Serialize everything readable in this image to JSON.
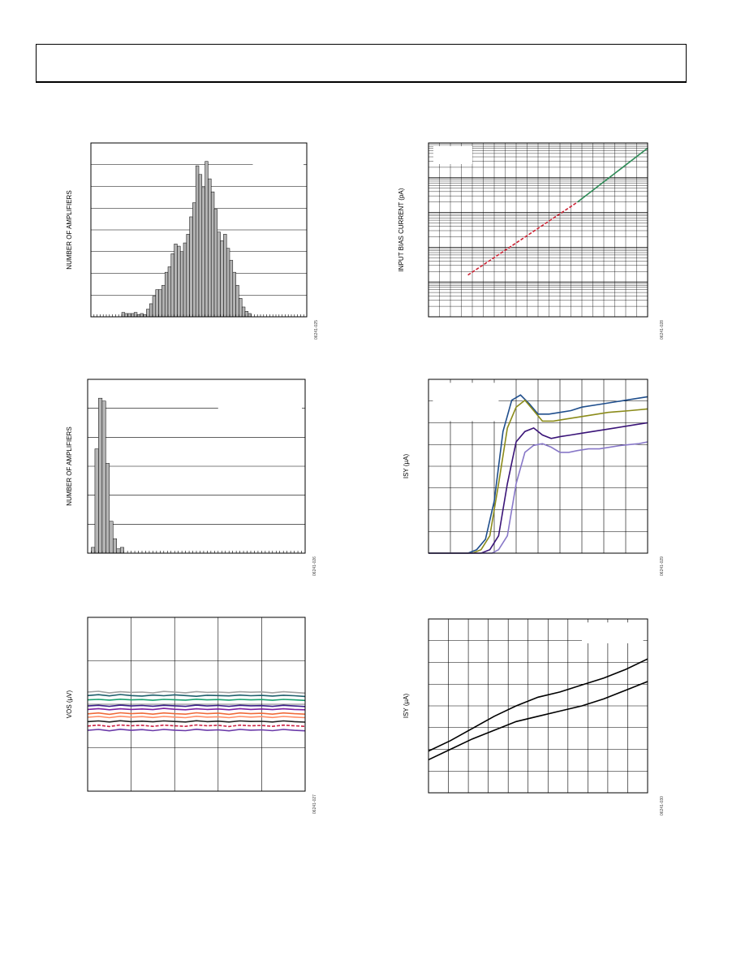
{
  "page": {
    "header_text": ""
  },
  "chart_data": [
    {
      "id": "fig1",
      "type": "bar",
      "title": "",
      "ylabel": "NUMBER OF AMPLIFIERS",
      "xlabel": "",
      "figure_id": "06241-025",
      "ylim": [
        0,
        8
      ],
      "grid": "horizontal",
      "bin_count": 70,
      "values": [
        0,
        0,
        0,
        0,
        0,
        0,
        0,
        0,
        0,
        0,
        0.2,
        0.15,
        0.15,
        0.15,
        0.2,
        0.1,
        0.15,
        0.1,
        0.35,
        0.6,
        0.95,
        1.25,
        1.25,
        1.45,
        2.05,
        2.3,
        2.9,
        3.35,
        3.25,
        3.0,
        3.4,
        3.8,
        4.6,
        5.25,
        6.95,
        6.55,
        5.95,
        7.15,
        6.35,
        5.75,
        4.95,
        3.9,
        3.5,
        3.8,
        3.15,
        2.6,
        2.05,
        1.45,
        0.85,
        0.45,
        0.25,
        0.15,
        0,
        0,
        0,
        0,
        0,
        0,
        0,
        0,
        0,
        0,
        0,
        0,
        0,
        0,
        0,
        0,
        0,
        0
      ]
    },
    {
      "id": "fig2",
      "type": "bar",
      "title": "",
      "ylabel": "NUMBER OF AMPLIFIERS",
      "xlabel": "",
      "figure_id": "06241-026",
      "ylim": [
        0,
        6
      ],
      "grid": "horizontal",
      "bin_count": 60,
      "values": [
        0,
        0.2,
        3.6,
        5.35,
        5.25,
        3.1,
        1.1,
        0.5,
        0.15,
        0.2,
        0,
        0,
        0,
        0,
        0,
        0,
        0,
        0,
        0,
        0,
        0,
        0,
        0,
        0,
        0,
        0,
        0,
        0,
        0,
        0,
        0,
        0,
        0,
        0,
        0,
        0,
        0,
        0,
        0,
        0,
        0,
        0,
        0,
        0,
        0,
        0,
        0,
        0,
        0,
        0,
        0,
        0,
        0,
        0,
        0,
        0,
        0,
        0,
        0,
        0
      ]
    },
    {
      "id": "fig3",
      "type": "line",
      "title": "",
      "ylabel": "VOS (µV)",
      "xlabel": "",
      "figure_id": "06241-027",
      "xlim": [
        0,
        100
      ],
      "ylim": [
        0,
        100
      ],
      "series": [
        {
          "color": "#a0a0a0",
          "values": [
            57,
            57.5,
            56.5,
            57.2,
            56.8,
            57,
            56.5,
            57.4,
            57,
            56.6,
            57.3,
            56.8,
            57,
            56.7,
            57.2,
            56.9,
            57.1,
            56.6,
            57.2,
            56.8,
            56.4
          ]
        },
        {
          "color": "#1e5f6b",
          "values": [
            55,
            55.5,
            54.8,
            55.6,
            55,
            54.7,
            55.3,
            54.9,
            55.4,
            55,
            54.6,
            55.2,
            55,
            54.8,
            55.3,
            54.9,
            55.1,
            54.7,
            55.2,
            54.9,
            54.5
          ]
        },
        {
          "color": "#18a070",
          "values": [
            52.5,
            52.8,
            52.4,
            52.9,
            52.5,
            52.7,
            52.3,
            52.8,
            52.6,
            52.4,
            52.9,
            52.5,
            52.7,
            52.4,
            52.8,
            52.5,
            52.7,
            52.3,
            52.8,
            52.5,
            52.2
          ]
        },
        {
          "color": "#3a1f8a",
          "values": [
            49,
            49.4,
            48.8,
            49.5,
            49,
            49.3,
            48.9,
            49.4,
            49.1,
            48.8,
            49.5,
            49,
            49.3,
            48.8,
            49.4,
            49.1,
            49.2,
            48.8,
            49.4,
            49,
            48.7
          ]
        },
        {
          "color": "#7b1fa2",
          "values": [
            47,
            47.5,
            46.8,
            47.4,
            47,
            47.3,
            46.9,
            47.6,
            47.1,
            46.8,
            47.4,
            47,
            47.3,
            46.8,
            47.5,
            47,
            47.3,
            46.9,
            47.4,
            47,
            46.8
          ]
        },
        {
          "color": "#f06a3a",
          "values": [
            44.5,
            45,
            44.2,
            45.1,
            44.6,
            44.9,
            44.3,
            45,
            44.6,
            44.3,
            45.1,
            44.6,
            44.9,
            44.2,
            45,
            44.6,
            44.8,
            44.3,
            45,
            44.6,
            44.3
          ]
        },
        {
          "color": "#ff8c66",
          "values": [
            42.5,
            43,
            42.3,
            43.1,
            42.6,
            42.9,
            42.4,
            43,
            42.6,
            42.3,
            43.1,
            42.6,
            42.8,
            42.3,
            43,
            42.6,
            42.9,
            42.4,
            43,
            42.6,
            42.3
          ]
        },
        {
          "color": "#222222",
          "values": [
            40,
            40.4,
            39.8,
            40.5,
            40,
            40.3,
            39.9,
            40.4,
            40.1,
            39.8,
            40.5,
            40,
            40.3,
            39.8,
            40.4,
            40.1,
            40.2,
            39.8,
            40.4,
            40,
            39.7
          ]
        },
        {
          "color": "#cc2244",
          "dashed": true,
          "values": [
            37.5,
            38,
            37.2,
            38.1,
            37.6,
            37.9,
            37.3,
            38,
            37.6,
            37.3,
            38.1,
            37.6,
            37.9,
            37.2,
            38,
            37.6,
            37.8,
            37.3,
            38,
            37.6,
            37.3
          ]
        },
        {
          "color": "#6a3aa8",
          "values": [
            35,
            35.5,
            34.7,
            35.6,
            35,
            35.4,
            34.8,
            35.5,
            35.1,
            34.8,
            35.6,
            35,
            35.3,
            34.7,
            35.5,
            35.1,
            35.3,
            34.8,
            35.5,
            35,
            34.7
          ]
        }
      ]
    },
    {
      "id": "fig4",
      "type": "line",
      "title": "",
      "ylabel": "INPUT BIAS CURRENT (pA)",
      "xlabel": "",
      "figure_id": "06241-028",
      "yscale": "log",
      "xlim": [
        0,
        100
      ],
      "ylim_decades": 5,
      "grid": "log",
      "series": [
        {
          "color": "#cc2233",
          "dashed": true,
          "x": [
            18,
            68
          ],
          "log_values": [
            1.2,
            3.3
          ]
        },
        {
          "color": "#2e8b57",
          "x": [
            68,
            100
          ],
          "log_values": [
            3.3,
            4.85
          ]
        }
      ]
    },
    {
      "id": "fig5",
      "type": "line",
      "title": "",
      "ylabel": "ISY (µA)",
      "xlabel": "",
      "figure_id": "06241-029",
      "xlim": [
        0,
        100
      ],
      "ylim": [
        0,
        100
      ],
      "grid": "both",
      "series": [
        {
          "color": "#1f4e8c",
          "x": [
            0,
            18,
            22,
            26,
            30,
            34,
            38,
            42,
            46,
            50,
            55,
            60,
            65,
            70,
            80,
            90,
            100
          ],
          "values": [
            0,
            0,
            2,
            8,
            30,
            70,
            88,
            91,
            86,
            80,
            80,
            81,
            82,
            84,
            86,
            88,
            90
          ]
        },
        {
          "color": "#8b8b1a",
          "x": [
            0,
            20,
            24,
            28,
            32,
            36,
            40,
            44,
            48,
            52,
            57,
            62,
            67,
            72,
            82,
            92,
            100
          ],
          "values": [
            0,
            0,
            2,
            10,
            40,
            72,
            84,
            88,
            82,
            76,
            76,
            77,
            78,
            79,
            81,
            82,
            83
          ]
        },
        {
          "color": "#3a1478",
          "x": [
            0,
            24,
            28,
            32,
            36,
            40,
            44,
            48,
            52,
            56,
            60,
            65,
            70,
            75,
            85,
            95,
            100
          ],
          "values": [
            0,
            0,
            2,
            10,
            40,
            64,
            70,
            72,
            68,
            66,
            67,
            68,
            69,
            70,
            72,
            74,
            75
          ]
        },
        {
          "color": "#8878c8",
          "x": [
            0,
            29,
            32,
            36,
            40,
            44,
            48,
            52,
            56,
            60,
            64,
            68,
            73,
            78,
            88,
            96,
            100
          ],
          "values": [
            0,
            0,
            2,
            10,
            40,
            58,
            62,
            63,
            61,
            58,
            58,
            59,
            60,
            60,
            62,
            63,
            64
          ]
        }
      ]
    },
    {
      "id": "fig6",
      "type": "line",
      "title": "",
      "ylabel": "ISY (µA)",
      "xlabel": "",
      "figure_id": "06241-030",
      "xlim": [
        0,
        100
      ],
      "ylim": [
        0,
        100
      ],
      "grid": "both",
      "series": [
        {
          "color": "#000000",
          "x": [
            0,
            10,
            20,
            30,
            40,
            50,
            60,
            70,
            80,
            90,
            100
          ],
          "values": [
            24,
            30,
            37,
            44,
            50,
            55,
            58,
            62,
            66,
            71,
            77
          ]
        },
        {
          "color": "#000000",
          "x": [
            0,
            10,
            20,
            30,
            40,
            50,
            60,
            70,
            80,
            90,
            100
          ],
          "values": [
            19,
            25,
            31,
            36,
            41,
            44,
            47,
            50,
            54,
            59,
            64
          ]
        }
      ]
    }
  ]
}
